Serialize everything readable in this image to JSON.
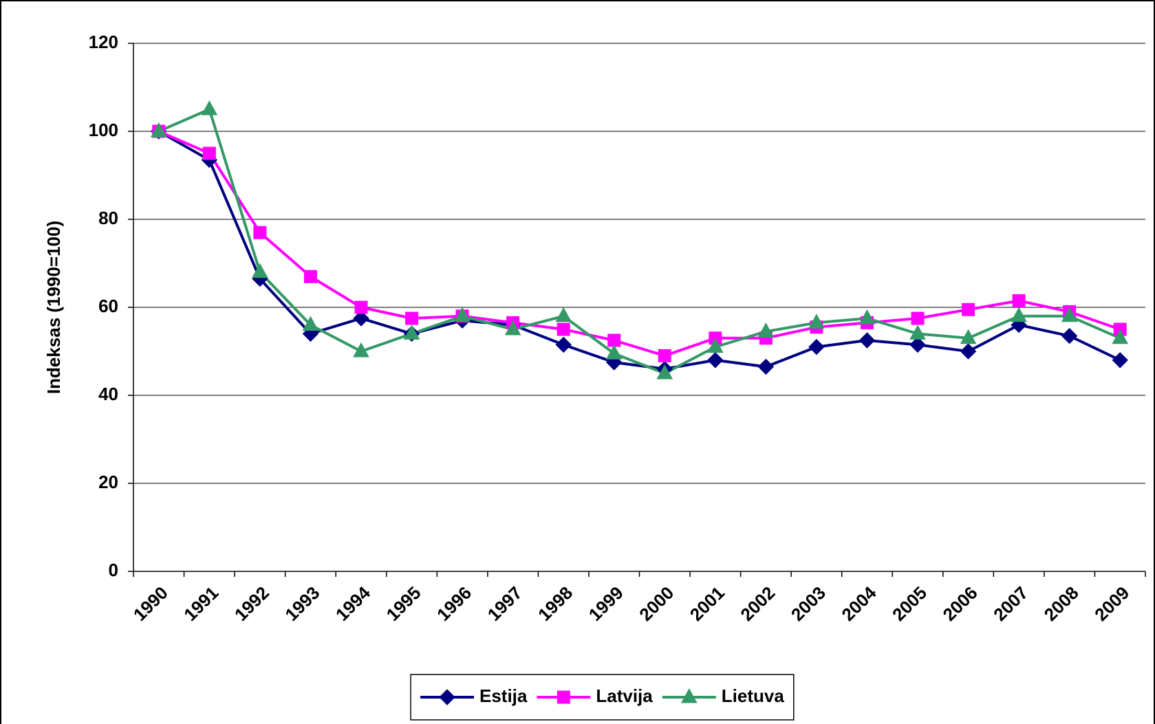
{
  "chart_data": {
    "type": "line",
    "y_label": "Indeksas (1990=100)",
    "categories": [
      "1990",
      "1991",
      "1992",
      "1993",
      "1994",
      "1995",
      "1996",
      "1997",
      "1998",
      "1999",
      "2000",
      "2001",
      "2002",
      "2003",
      "2004",
      "2005",
      "2006",
      "2007",
      "2008",
      "2009"
    ],
    "series": [
      {
        "name": "Estija",
        "color": "#000080",
        "marker": "diamond",
        "values": [
          100,
          93.5,
          66.5,
          54,
          57.5,
          54,
          57,
          56,
          51.5,
          47.5,
          46,
          48,
          46.5,
          51,
          52.5,
          51.5,
          50,
          56,
          53.5,
          48
        ]
      },
      {
        "name": "Latvija",
        "color": "#ff00ff",
        "marker": "square",
        "values": [
          100,
          95,
          77,
          67,
          60,
          57.5,
          58,
          56.5,
          55,
          52.5,
          49,
          53,
          53,
          55.5,
          56.5,
          57.5,
          59.5,
          61.5,
          59,
          55
        ]
      },
      {
        "name": "Lietuva",
        "color": "#339966",
        "marker": "triangle",
        "values": [
          100,
          105,
          68,
          56,
          50,
          54,
          58,
          55,
          58,
          49.5,
          45,
          51,
          54.5,
          56.5,
          57.5,
          54,
          53,
          58,
          58,
          53
        ]
      }
    ],
    "ylim": [
      0,
      120
    ],
    "yticks": [
      0,
      20,
      40,
      60,
      80,
      100,
      120
    ],
    "grid": true,
    "legend": "bottom"
  }
}
